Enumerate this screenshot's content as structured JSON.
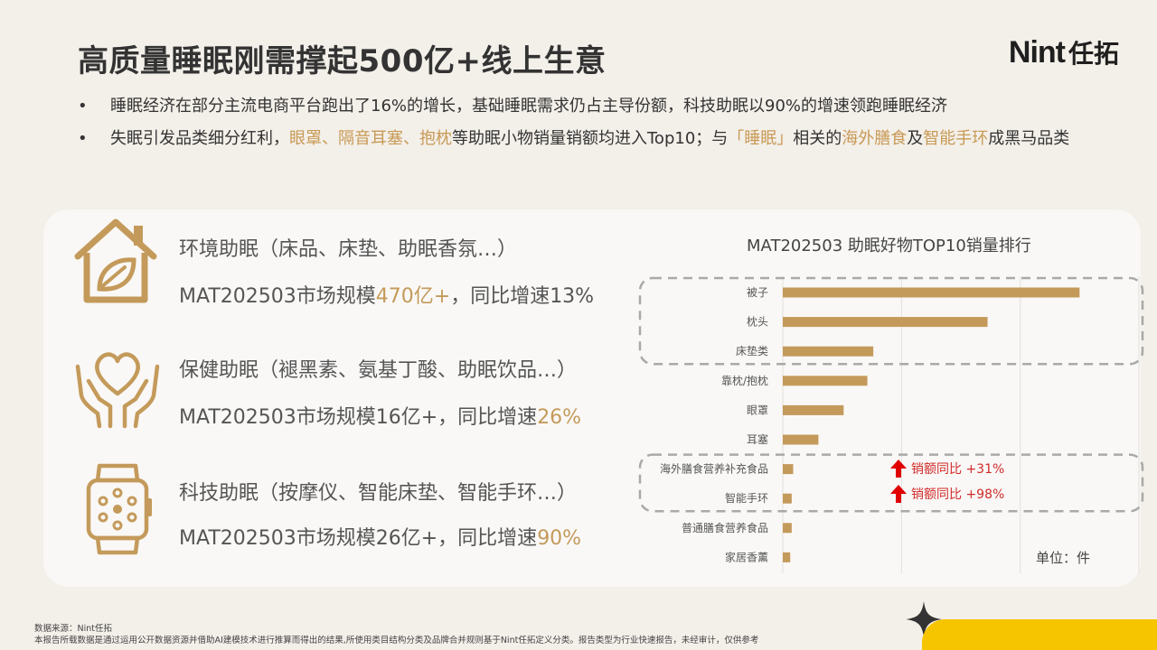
{
  "header": {
    "title": "高质量睡眠刚需撑起500亿+线上生意",
    "logo_latin": "Nint",
    "logo_cn": "任拓"
  },
  "bullets": {
    "b1": "睡眠经济在部分主流电商平台跑出了16%的增长，基础睡眠需求仍占主导份额，科技助眠以90%的增速领跑睡眠经济",
    "b2_parts": [
      "失眠引发品类细分红利，",
      "眼罩、隔音耳塞、抱枕",
      "等助眠小物销量销额均进入Top10；与",
      "「睡眠」",
      "相关的",
      "海外膳食",
      "及",
      "智能手环",
      "成黑马品类"
    ]
  },
  "categories": [
    {
      "icon": "house-leaf-icon",
      "name": "环境助眠（床品、床垫、助眠香氛…）",
      "market_prefix": "MAT202503市场规模",
      "market_size": "470亿+",
      "growth_prefix": "，同比增速13%",
      "growth": ""
    },
    {
      "icon": "hands-heart-icon",
      "name": "保健助眠（褪黑素、氨基丁酸、助眠饮品…）",
      "market_prefix": "MAT202503市场规模16亿+，同比增速",
      "market_size": "",
      "growth_prefix": "",
      "growth": "26%"
    },
    {
      "icon": "smartwatch-icon",
      "name": "科技助眠（按摩仪、智能床垫、智能手环…）",
      "market_prefix": "MAT202503市场规模26亿+，同比增速",
      "market_size": "",
      "growth_prefix": "",
      "growth": "90%"
    }
  ],
  "chart_data": {
    "type": "bar",
    "orientation": "horizontal",
    "title": "MAT202503 助眠好物TOP10销量排行",
    "unit_label": "单位：件",
    "categories": [
      "被子",
      "枕头",
      "床垫类",
      "靠枕/抱枕",
      "眼罩",
      "耳塞",
      "海外膳食营养补充食品",
      "智能手环",
      "普通膳食营养食品",
      "家居香薰"
    ],
    "values": [
      100,
      69,
      30.5,
      28.5,
      20.5,
      12,
      3.5,
      3,
      3,
      2.5
    ],
    "xlim": [
      0,
      120
    ],
    "grid": true,
    "annotations": [
      {
        "category": "海外膳食营养补充食品",
        "text": "销额同比 +31%"
      },
      {
        "category": "智能手环",
        "text": "销额同比 +98%"
      }
    ],
    "bar_color": "#c49a5b",
    "up_arrow_color": "#e00000"
  }
}
